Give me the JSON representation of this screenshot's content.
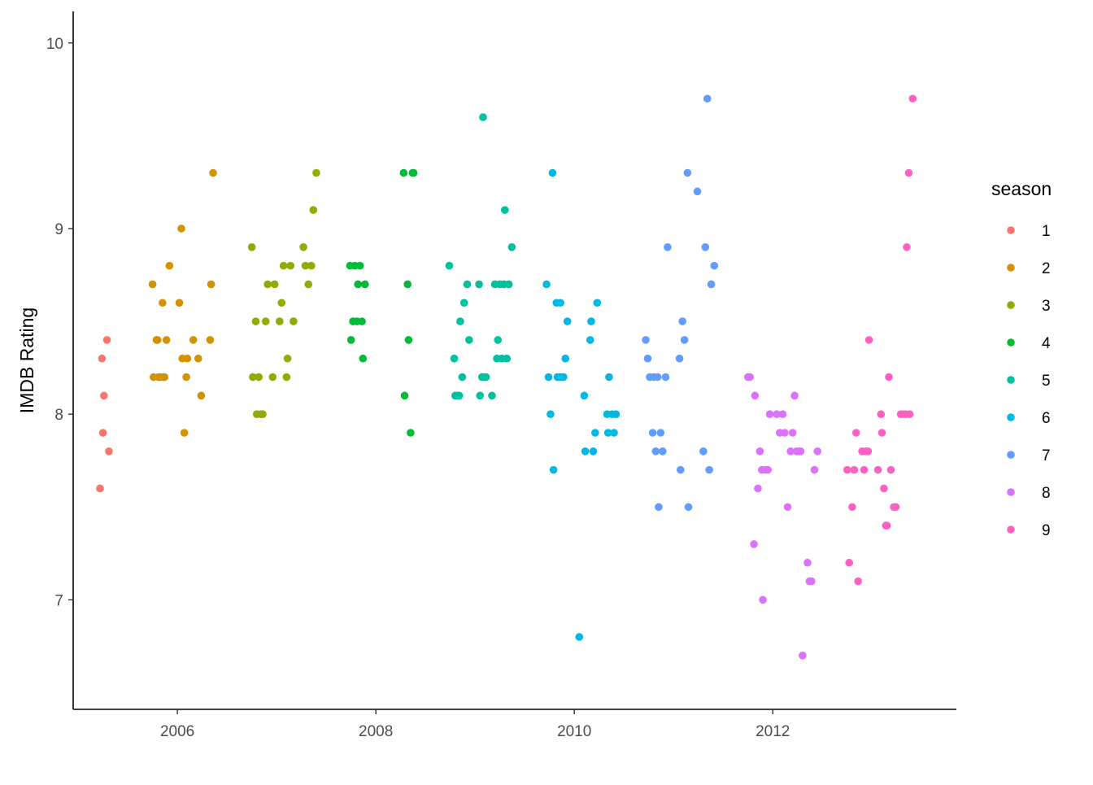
{
  "chart_data": {
    "type": "scatter",
    "title": "",
    "xlabel": "",
    "ylabel": "IMDB Rating",
    "xlim": [
      2004.95,
      2013.85
    ],
    "ylim": [
      6.41,
      10.17
    ],
    "x_ticks": [
      2006,
      2008,
      2010,
      2012
    ],
    "y_ticks": [
      7,
      8,
      9,
      10
    ],
    "grid": false,
    "legend": {
      "title": "season",
      "position": "right"
    },
    "series": [
      {
        "name": "1",
        "color": "#F8766D",
        "points": [
          [
            2005.22,
            7.6
          ],
          [
            2005.24,
            8.3
          ],
          [
            2005.25,
            7.9
          ],
          [
            2005.26,
            8.1
          ],
          [
            2005.29,
            8.4
          ],
          [
            2005.31,
            7.8
          ]
        ]
      },
      {
        "name": "2",
        "color": "#D39200",
        "points": [
          [
            2005.75,
            8.7
          ],
          [
            2005.76,
            8.2
          ],
          [
            2005.79,
            8.4
          ],
          [
            2005.8,
            8.4
          ],
          [
            2005.81,
            8.2
          ],
          [
            2005.83,
            8.2
          ],
          [
            2005.85,
            8.6
          ],
          [
            2005.86,
            8.2
          ],
          [
            2005.87,
            8.2
          ],
          [
            2005.89,
            8.4
          ],
          [
            2005.92,
            8.8
          ],
          [
            2006.02,
            8.6
          ],
          [
            2006.04,
            9.0
          ],
          [
            2006.05,
            8.3
          ],
          [
            2006.07,
            7.9
          ],
          [
            2006.09,
            8.2
          ],
          [
            2006.1,
            8.3
          ],
          [
            2006.16,
            8.4
          ],
          [
            2006.21,
            8.3
          ],
          [
            2006.24,
            8.1
          ],
          [
            2006.33,
            8.4
          ],
          [
            2006.34,
            8.7
          ],
          [
            2006.36,
            9.3
          ]
        ]
      },
      {
        "name": "3",
        "color": "#93AA00",
        "points": [
          [
            2006.75,
            8.9
          ],
          [
            2006.76,
            8.2
          ],
          [
            2006.79,
            8.5
          ],
          [
            2006.8,
            8.0
          ],
          [
            2006.82,
            8.2
          ],
          [
            2006.84,
            8.0
          ],
          [
            2006.86,
            8.0
          ],
          [
            2006.89,
            8.5
          ],
          [
            2006.91,
            8.7
          ],
          [
            2006.96,
            8.2
          ],
          [
            2006.98,
            8.7
          ],
          [
            2007.03,
            8.5
          ],
          [
            2007.05,
            8.6
          ],
          [
            2007.07,
            8.8
          ],
          [
            2007.1,
            8.2
          ],
          [
            2007.11,
            8.3
          ],
          [
            2007.14,
            8.8
          ],
          [
            2007.17,
            8.5
          ],
          [
            2007.27,
            8.9
          ],
          [
            2007.29,
            8.8
          ],
          [
            2007.32,
            8.7
          ],
          [
            2007.35,
            8.8
          ],
          [
            2007.37,
            9.1
          ],
          [
            2007.4,
            9.3
          ]
        ]
      },
      {
        "name": "4",
        "color": "#00BA38",
        "points": [
          [
            2007.74,
            8.8
          ],
          [
            2007.75,
            8.4
          ],
          [
            2007.77,
            8.5
          ],
          [
            2007.79,
            8.8
          ],
          [
            2007.81,
            8.5
          ],
          [
            2007.82,
            8.7
          ],
          [
            2007.84,
            8.8
          ],
          [
            2007.86,
            8.5
          ],
          [
            2007.87,
            8.3
          ],
          [
            2007.89,
            8.7
          ],
          [
            2008.28,
            9.3
          ],
          [
            2008.29,
            8.1
          ],
          [
            2008.32,
            8.7
          ],
          [
            2008.33,
            8.4
          ],
          [
            2008.35,
            7.9
          ],
          [
            2008.37,
            9.3
          ],
          [
            2008.38,
            9.3
          ]
        ]
      },
      {
        "name": "5",
        "color": "#00C19F",
        "points": [
          [
            2008.74,
            8.8
          ],
          [
            2008.79,
            8.3
          ],
          [
            2008.8,
            8.1
          ],
          [
            2008.82,
            8.1
          ],
          [
            2008.84,
            8.1
          ],
          [
            2008.85,
            8.5
          ],
          [
            2008.87,
            8.2
          ],
          [
            2008.89,
            8.6
          ],
          [
            2008.92,
            8.7
          ],
          [
            2008.94,
            8.4
          ],
          [
            2009.04,
            8.7
          ],
          [
            2009.05,
            8.1
          ],
          [
            2009.07,
            8.2
          ],
          [
            2009.08,
            9.6
          ],
          [
            2009.09,
            8.2
          ],
          [
            2009.11,
            8.2
          ],
          [
            2009.17,
            8.1
          ],
          [
            2009.2,
            8.7
          ],
          [
            2009.22,
            8.3
          ],
          [
            2009.23,
            8.4
          ],
          [
            2009.25,
            8.7
          ],
          [
            2009.27,
            8.3
          ],
          [
            2009.29,
            8.7
          ],
          [
            2009.3,
            9.1
          ],
          [
            2009.32,
            8.3
          ],
          [
            2009.34,
            8.7
          ],
          [
            2009.37,
            8.9
          ]
        ]
      },
      {
        "name": "6",
        "color": "#00B9E3",
        "points": [
          [
            2009.72,
            8.7
          ],
          [
            2009.74,
            8.2
          ],
          [
            2009.76,
            8.0
          ],
          [
            2009.78,
            9.3
          ],
          [
            2009.79,
            7.7
          ],
          [
            2009.82,
            8.6
          ],
          [
            2009.83,
            8.2
          ],
          [
            2009.85,
            8.2
          ],
          [
            2009.86,
            8.6
          ],
          [
            2009.87,
            8.2
          ],
          [
            2009.89,
            8.2
          ],
          [
            2009.91,
            8.3
          ],
          [
            2009.93,
            8.5
          ],
          [
            2010.05,
            6.8
          ],
          [
            2010.1,
            8.1
          ],
          [
            2010.11,
            7.8
          ],
          [
            2010.16,
            8.4
          ],
          [
            2010.17,
            8.5
          ],
          [
            2010.19,
            7.8
          ],
          [
            2010.21,
            7.9
          ],
          [
            2010.23,
            8.6
          ],
          [
            2010.33,
            8.0
          ],
          [
            2010.34,
            7.9
          ],
          [
            2010.35,
            8.2
          ],
          [
            2010.38,
            8.0
          ],
          [
            2010.4,
            7.9
          ],
          [
            2010.42,
            8.0
          ]
        ]
      },
      {
        "name": "7",
        "color": "#619CFF",
        "points": [
          [
            2010.72,
            8.4
          ],
          [
            2010.74,
            8.3
          ],
          [
            2010.76,
            8.2
          ],
          [
            2010.79,
            7.9
          ],
          [
            2010.8,
            8.2
          ],
          [
            2010.82,
            7.8
          ],
          [
            2010.84,
            8.2
          ],
          [
            2010.85,
            7.5
          ],
          [
            2010.87,
            7.9
          ],
          [
            2010.89,
            7.8
          ],
          [
            2010.92,
            8.2
          ],
          [
            2010.94,
            8.9
          ],
          [
            2011.06,
            8.3
          ],
          [
            2011.07,
            7.7
          ],
          [
            2011.09,
            8.5
          ],
          [
            2011.11,
            8.4
          ],
          [
            2011.14,
            9.3
          ],
          [
            2011.15,
            7.5
          ],
          [
            2011.24,
            9.2
          ],
          [
            2011.3,
            7.8
          ],
          [
            2011.32,
            8.9
          ],
          [
            2011.34,
            9.7
          ],
          [
            2011.36,
            7.7
          ],
          [
            2011.38,
            8.7
          ],
          [
            2011.41,
            8.8
          ]
        ]
      },
      {
        "name": "8",
        "color": "#DB72FB",
        "points": [
          [
            2011.75,
            8.2
          ],
          [
            2011.77,
            8.2
          ],
          [
            2011.81,
            7.3
          ],
          [
            2011.82,
            8.1
          ],
          [
            2011.85,
            7.6
          ],
          [
            2011.87,
            7.8
          ],
          [
            2011.89,
            7.7
          ],
          [
            2011.9,
            7.0
          ],
          [
            2011.93,
            7.7
          ],
          [
            2011.95,
            7.7
          ],
          [
            2011.97,
            8.0
          ],
          [
            2012.04,
            8.0
          ],
          [
            2012.07,
            7.9
          ],
          [
            2012.1,
            8.0
          ],
          [
            2012.12,
            7.9
          ],
          [
            2012.15,
            7.5
          ],
          [
            2012.18,
            7.8
          ],
          [
            2012.2,
            7.9
          ],
          [
            2012.22,
            8.1
          ],
          [
            2012.24,
            7.8
          ],
          [
            2012.27,
            7.8
          ],
          [
            2012.28,
            7.8
          ],
          [
            2012.3,
            6.7
          ],
          [
            2012.35,
            7.2
          ],
          [
            2012.37,
            7.1
          ],
          [
            2012.39,
            7.1
          ],
          [
            2012.42,
            7.7
          ],
          [
            2012.45,
            7.8
          ]
        ]
      },
      {
        "name": "9",
        "color": "#FF61C3",
        "points": [
          [
            2012.75,
            7.7
          ],
          [
            2012.77,
            7.2
          ],
          [
            2012.8,
            7.5
          ],
          [
            2012.82,
            7.7
          ],
          [
            2012.84,
            7.9
          ],
          [
            2012.86,
            7.1
          ],
          [
            2012.9,
            7.8
          ],
          [
            2012.92,
            7.7
          ],
          [
            2012.94,
            7.8
          ],
          [
            2012.96,
            7.8
          ],
          [
            2012.97,
            8.4
          ],
          [
            2013.06,
            7.7
          ],
          [
            2013.09,
            8.0
          ],
          [
            2013.1,
            7.9
          ],
          [
            2013.12,
            7.6
          ],
          [
            2013.14,
            7.4
          ],
          [
            2013.15,
            7.4
          ],
          [
            2013.17,
            8.2
          ],
          [
            2013.19,
            7.7
          ],
          [
            2013.22,
            7.5
          ],
          [
            2013.24,
            7.5
          ],
          [
            2013.29,
            8.0
          ],
          [
            2013.31,
            8.0
          ],
          [
            2013.34,
            8.0
          ],
          [
            2013.35,
            8.9
          ],
          [
            2013.37,
            9.3
          ],
          [
            2013.38,
            8.0
          ],
          [
            2013.41,
            9.7
          ]
        ]
      }
    ]
  }
}
